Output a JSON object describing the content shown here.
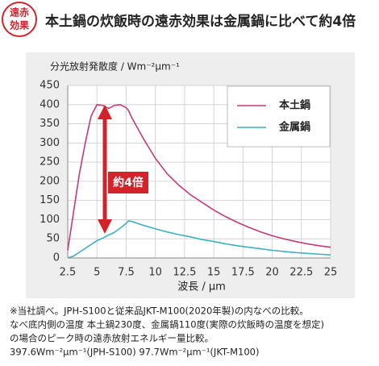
{
  "header": {
    "badge": [
      "遠赤",
      "効果"
    ],
    "title": "本土鍋の炊飯時の遠赤効果は金属鍋に比べて約4倍"
  },
  "chart_data": {
    "type": "line",
    "ylabel": "分光放射発散度 / Wm⁻²μm⁻¹",
    "xlabel": "波長 / μm",
    "annotation": "約4倍",
    "x": [
      2.5,
      3,
      3.5,
      4,
      4.5,
      5,
      5.5,
      6,
      6.5,
      7,
      7.5,
      7.7,
      8,
      9,
      10,
      11,
      12,
      13,
      14,
      15,
      16,
      17,
      18,
      19,
      20,
      21,
      22,
      23,
      24,
      25
    ],
    "series": [
      {
        "name": "本土鍋",
        "color": "#c8387a",
        "values": [
          20,
          120,
          220,
          300,
          370,
          400,
          398,
          390,
          398,
          400,
          392,
          385,
          365,
          310,
          260,
          220,
          190,
          165,
          145,
          125,
          108,
          93,
          80,
          68,
          58,
          50,
          43,
          37,
          32,
          28
        ]
      },
      {
        "name": "金属鍋",
        "color": "#3fb1c0",
        "values": [
          0,
          5,
          15,
          25,
          35,
          45,
          52,
          60,
          67,
          78,
          90,
          97,
          95,
          85,
          76,
          68,
          61,
          55,
          48,
          43,
          37,
          32,
          28,
          24,
          20,
          17,
          14,
          12,
          10,
          8
        ]
      }
    ],
    "xlim": [
      2.5,
      25
    ],
    "xticks": [
      2.5,
      5,
      7.5,
      10,
      12.5,
      15,
      17.5,
      20,
      22.5,
      25
    ],
    "ylim": [
      0,
      450
    ],
    "yticks": [
      0,
      50,
      100,
      150,
      200,
      250,
      300,
      350,
      400,
      450
    ],
    "grid": true,
    "legend": "upper right"
  },
  "notes": [
    "※当社調べ。JPH-S100と従来品JKT-M100(2020年製)の内なべの比較。",
    "なべ底内側の温度 本土鍋230度、金属鍋110度(実際の炊飯時の温度を想定)",
    "の場合のピーク時の遠赤放射エネルギー量比較。",
    "397.6Wm⁻²μm⁻¹(JPH-S100) 97.7Wm⁻²μm⁻¹(JKT-M100)"
  ]
}
